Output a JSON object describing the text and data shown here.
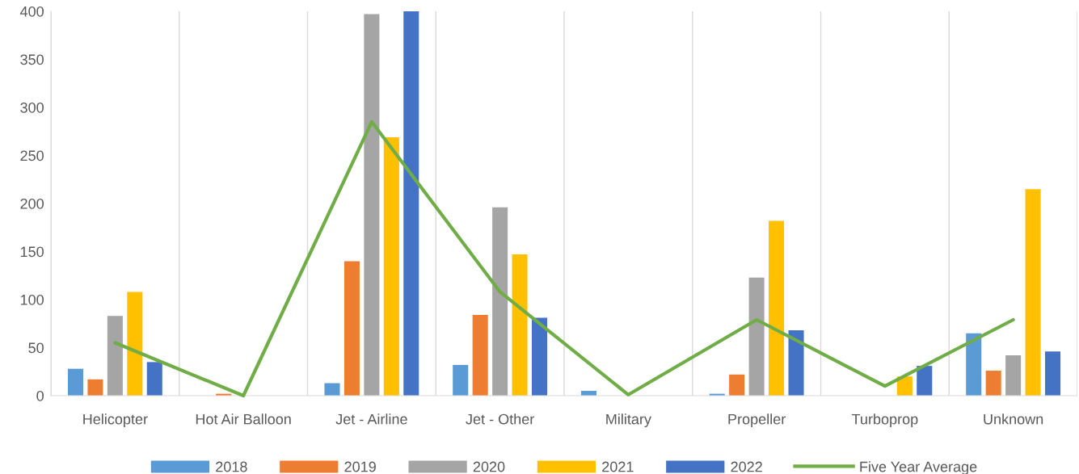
{
  "chart_data": {
    "type": "bar",
    "categories": [
      "Helicopter",
      "Hot Air Balloon",
      "Jet - Airline",
      "Jet - Other",
      "Military",
      "Propeller",
      "Turboprop",
      "Unknown"
    ],
    "series": [
      {
        "name": "2018",
        "color": "#5b9bd5",
        "values": [
          28,
          0,
          13,
          32,
          5,
          2,
          0,
          65
        ]
      },
      {
        "name": "2019",
        "color": "#ed7d31",
        "values": [
          17,
          2,
          140,
          84,
          0,
          22,
          0,
          26
        ]
      },
      {
        "name": "2020",
        "color": "#a5a5a5",
        "values": [
          83,
          0,
          397,
          196,
          0,
          123,
          0,
          42
        ]
      },
      {
        "name": "2021",
        "color": "#ffc000",
        "values": [
          108,
          0,
          269,
          147,
          0,
          182,
          20,
          215
        ]
      },
      {
        "name": "2022",
        "color": "#4472c4",
        "values": [
          35,
          0,
          400,
          81,
          0,
          68,
          31,
          46
        ]
      },
      {
        "name": "Five Year Average",
        "type": "line",
        "color": "#70ad47",
        "values": [
          55,
          0,
          285,
          108,
          1,
          79,
          10,
          79
        ]
      }
    ],
    "ylim": [
      0,
      400
    ],
    "yticks": [
      0,
      50,
      100,
      150,
      200,
      250,
      300,
      350,
      400
    ],
    "grid": "x",
    "legend": "bottom"
  }
}
